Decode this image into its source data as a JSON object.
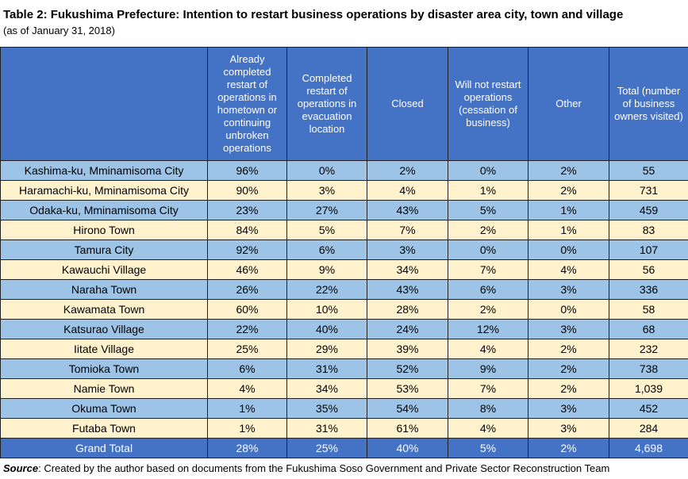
{
  "title": "Table 2: Fukushima Prefecture: Intention to restart business operations by disaster area city, town and village",
  "subtitle": "(as of January 31, 2018)",
  "columns": [
    "",
    "Already completed restart of operations in hometown or continuing unbroken operations",
    "Completed restart of operations in evacuation location",
    "Closed",
    "Will not restart operations (cessation of business)",
    "Other",
    "Total (number of business owners visited)"
  ],
  "rows": [
    {
      "name": "Kashima-ku, Mminamisoma City",
      "values": [
        "96%",
        "0%",
        "2%",
        "0%",
        "2%",
        "55"
      ]
    },
    {
      "name": "Haramachi-ku, Mminamisoma City",
      "values": [
        "90%",
        "3%",
        "4%",
        "1%",
        "2%",
        "731"
      ]
    },
    {
      "name": "Odaka-ku, Mminamisoma City",
      "values": [
        "23%",
        "27%",
        "43%",
        "5%",
        "1%",
        "459"
      ]
    },
    {
      "name": "Hirono Town",
      "values": [
        "84%",
        "5%",
        "7%",
        "2%",
        "1%",
        "83"
      ]
    },
    {
      "name": "Tamura City",
      "values": [
        "92%",
        "6%",
        "3%",
        "0%",
        "0%",
        "107"
      ]
    },
    {
      "name": "Kawauchi Village",
      "values": [
        "46%",
        "9%",
        "34%",
        "7%",
        "4%",
        "56"
      ]
    },
    {
      "name": "Naraha Town",
      "values": [
        "26%",
        "22%",
        "43%",
        "6%",
        "3%",
        "336"
      ]
    },
    {
      "name": "Kawamata Town",
      "values": [
        "60%",
        "10%",
        "28%",
        "2%",
        "0%",
        "58"
      ]
    },
    {
      "name": "Katsurao Village",
      "values": [
        "22%",
        "40%",
        "24%",
        "12%",
        "3%",
        "68"
      ]
    },
    {
      "name": "Iitate Village",
      "values": [
        "25%",
        "29%",
        "39%",
        "4%",
        "2%",
        "232"
      ]
    },
    {
      "name": "Tomioka Town",
      "values": [
        "6%",
        "31%",
        "52%",
        "9%",
        "2%",
        "738"
      ]
    },
    {
      "name": "Namie Town",
      "values": [
        "4%",
        "34%",
        "53%",
        "7%",
        "2%",
        "1,039"
      ]
    },
    {
      "name": "Okuma Town",
      "values": [
        "1%",
        "35%",
        "54%",
        "8%",
        "3%",
        "452"
      ]
    },
    {
      "name": "Futaba Town",
      "values": [
        "1%",
        "31%",
        "61%",
        "4%",
        "3%",
        "284"
      ]
    }
  ],
  "total": {
    "name": "Grand Total",
    "values": [
      "28%",
      "25%",
      "40%",
      "5%",
      "2%",
      "4,698"
    ]
  },
  "source": {
    "label": "Source",
    "separator": ": ",
    "text": "Created by the author based on documents from the Fukushima Soso Government and Private Sector Reconstruction Team"
  },
  "colors": {
    "header": "#4472c4",
    "row_blue": "#9dc3e6",
    "row_cream": "#fff2cc",
    "total": "#4472c4"
  }
}
